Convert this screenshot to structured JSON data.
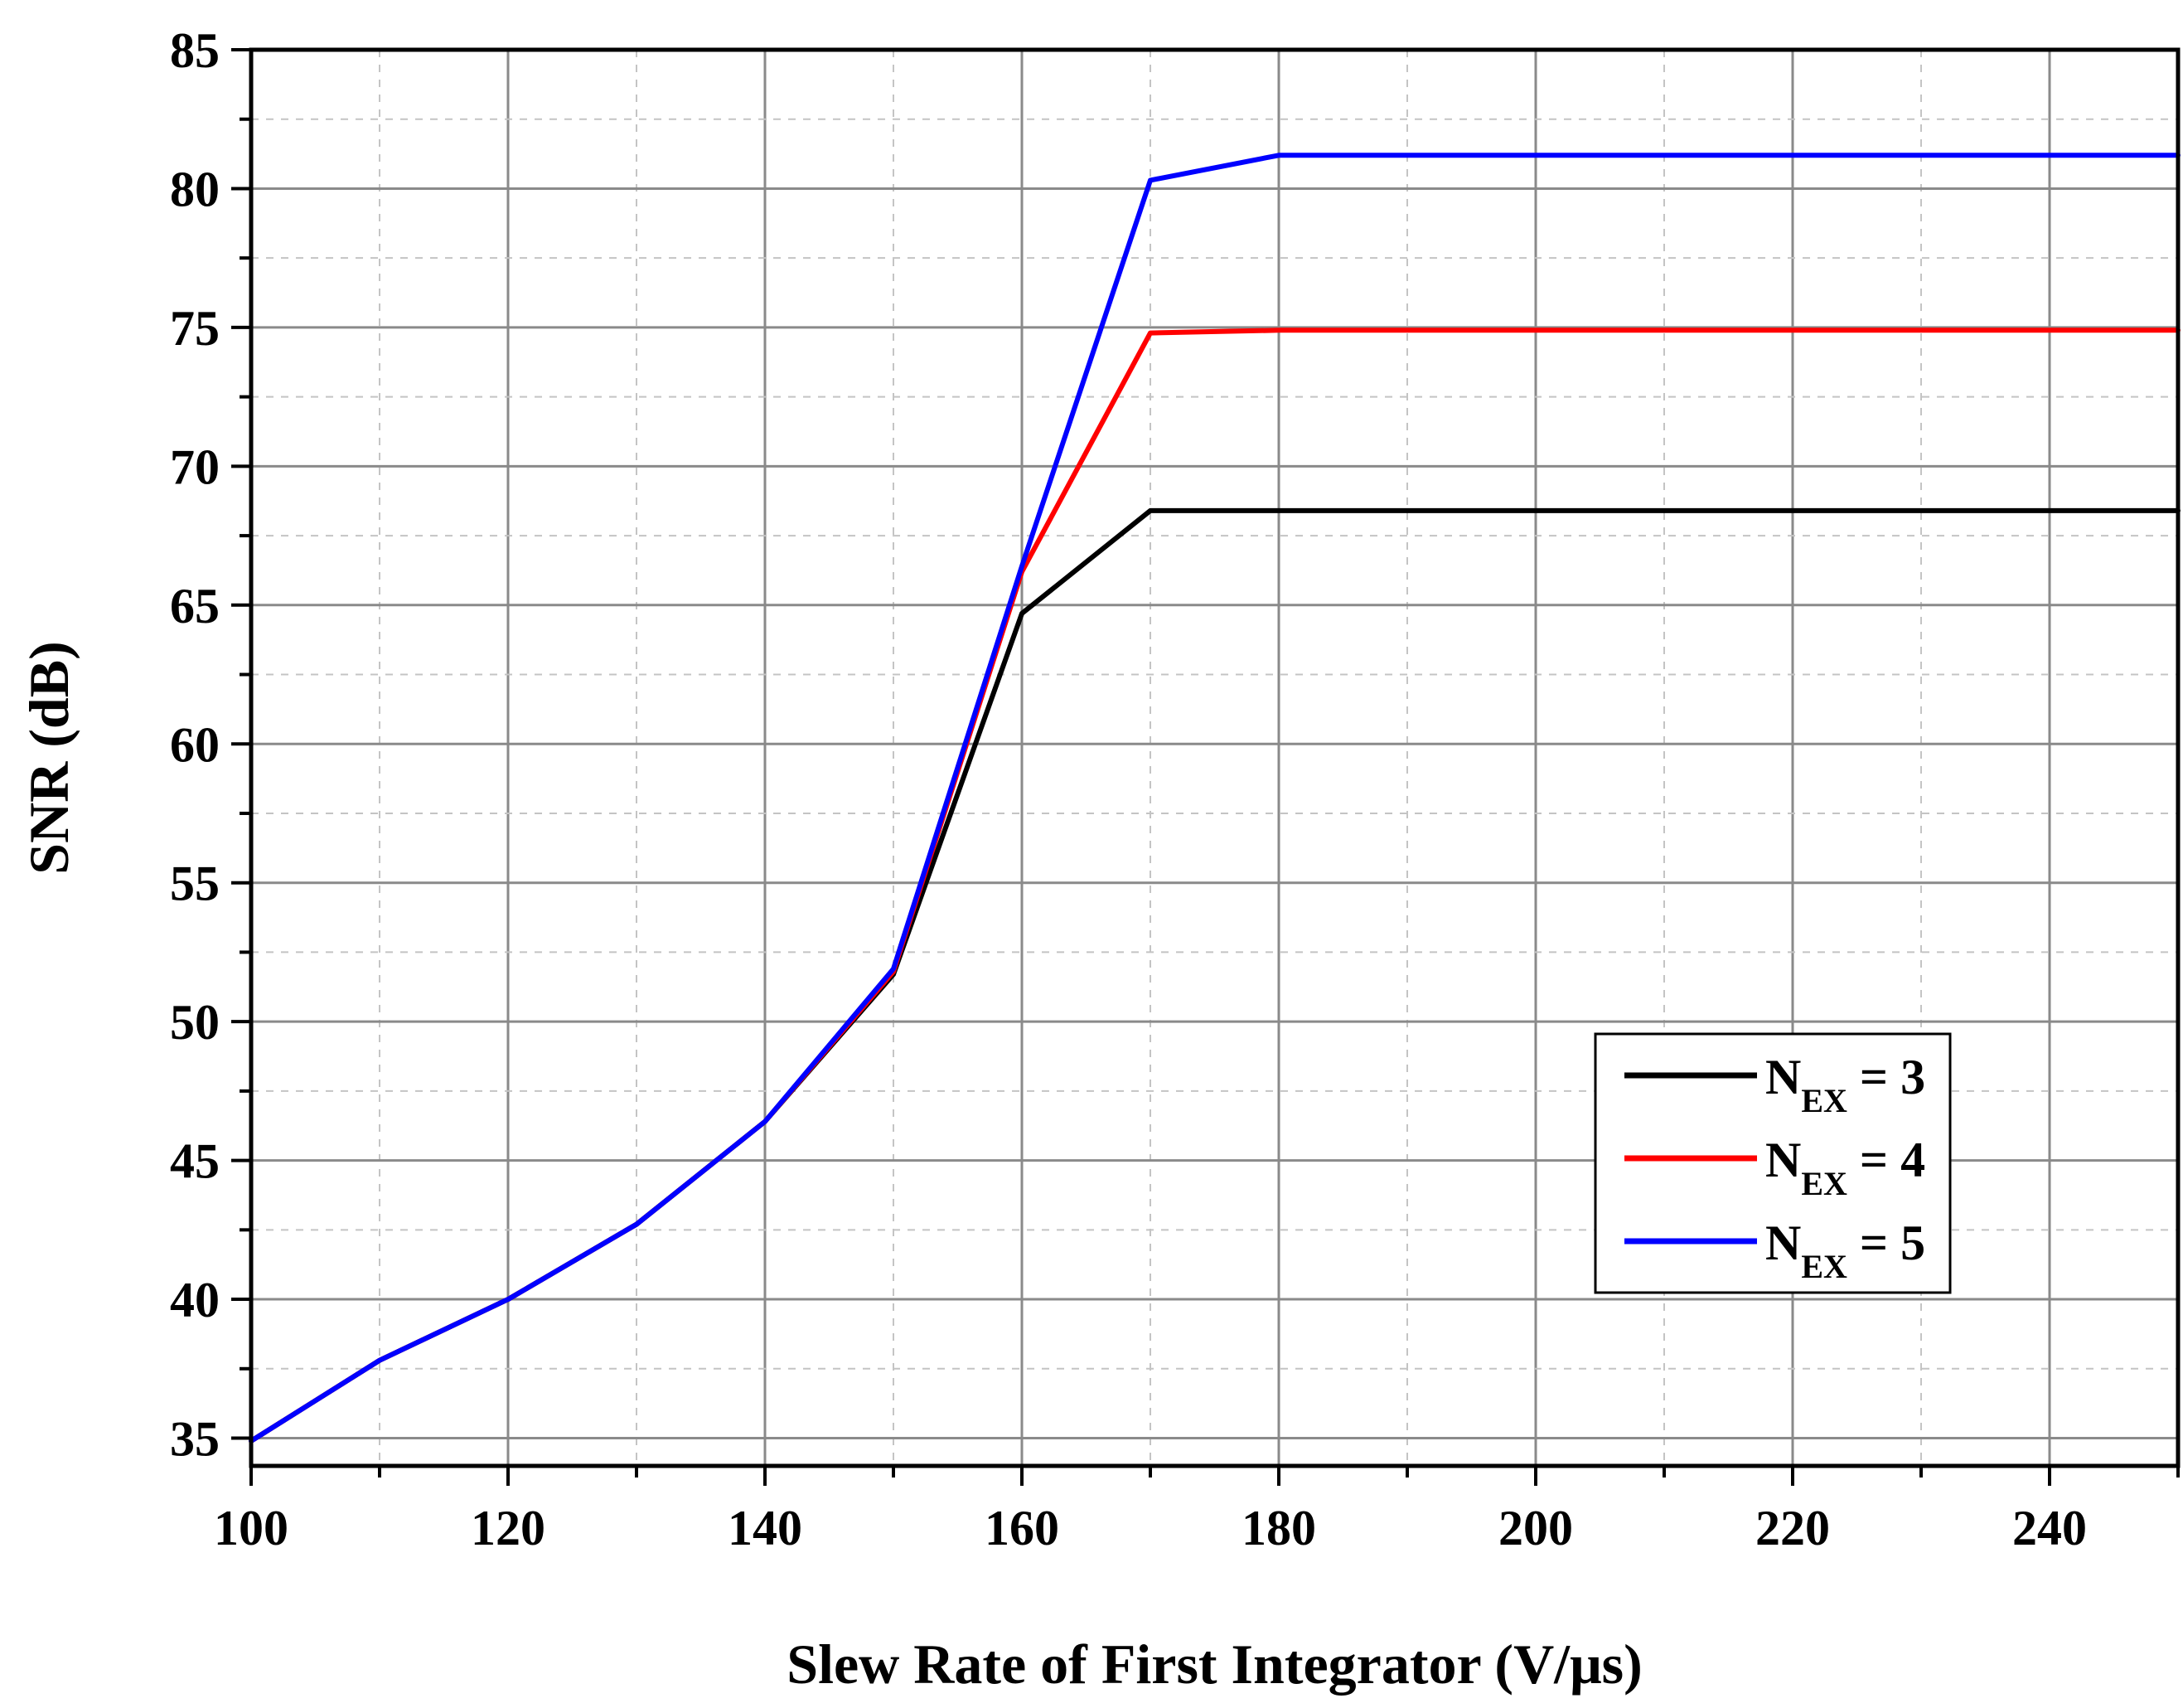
{
  "chart_data": {
    "type": "line",
    "title": "",
    "xlabel": "Slew Rate of First Integrator (V/μs)",
    "ylabel": "SNR (dB)",
    "xlim": [
      100,
      250
    ],
    "ylim": [
      34,
      85
    ],
    "xticks": [
      100,
      120,
      140,
      160,
      180,
      200,
      220,
      240
    ],
    "yticks": [
      35,
      40,
      45,
      50,
      55,
      60,
      65,
      70,
      75,
      80,
      85
    ],
    "x_minor_step": 10,
    "y_minor_step": 2.5,
    "grid": true,
    "legend_position": "lower-right",
    "x": [
      100,
      110,
      120,
      130,
      140,
      150,
      160,
      170,
      180,
      190,
      200,
      210,
      220,
      230,
      240,
      250
    ],
    "series": [
      {
        "name": "N_EX = 3",
        "label_main": "N",
        "label_sub": "EX",
        "label_tail": " = 3",
        "color": "#000000",
        "values": [
          34.9,
          37.8,
          40.0,
          42.7,
          46.4,
          51.7,
          64.7,
          68.4,
          68.4,
          68.4,
          68.4,
          68.4,
          68.4,
          68.4,
          68.4,
          68.4
        ]
      },
      {
        "name": "N_EX = 4",
        "label_main": "N",
        "label_sub": "EX",
        "label_tail": " = 4",
        "color": "#ff0000",
        "values": [
          34.9,
          37.8,
          40.0,
          42.7,
          46.4,
          51.8,
          66.2,
          74.8,
          74.9,
          74.9,
          74.9,
          74.9,
          74.9,
          74.9,
          74.9,
          74.9
        ]
      },
      {
        "name": "N_EX = 5",
        "label_main": "N",
        "label_sub": "EX",
        "label_tail": " = 5",
        "color": "#0000ff",
        "values": [
          34.9,
          37.8,
          40.0,
          42.7,
          46.4,
          51.9,
          66.4,
          80.3,
          81.2,
          81.2,
          81.2,
          81.2,
          81.2,
          81.2,
          81.2,
          81.2
        ]
      }
    ]
  }
}
